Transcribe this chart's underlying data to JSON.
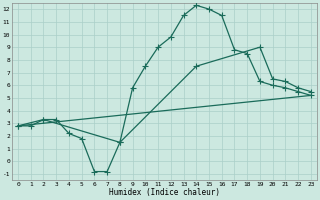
{
  "xlabel": "Humidex (Indice chaleur)",
  "bg_color": "#cce8e0",
  "grid_color": "#aacfc8",
  "line_color": "#1a6b5a",
  "xlim": [
    -0.5,
    23.5
  ],
  "ylim": [
    -1.5,
    12.5
  ],
  "xticks": [
    0,
    1,
    2,
    3,
    4,
    5,
    6,
    7,
    8,
    9,
    10,
    11,
    12,
    13,
    14,
    15,
    16,
    17,
    18,
    19,
    20,
    21,
    22,
    23
  ],
  "yticks": [
    -1,
    0,
    1,
    2,
    3,
    4,
    5,
    6,
    7,
    8,
    9,
    10,
    11,
    12
  ],
  "line1_x": [
    0,
    1,
    2,
    3,
    4,
    5,
    6,
    7,
    8,
    9,
    10,
    11,
    12,
    13,
    14,
    15,
    16,
    17,
    18,
    19,
    20,
    21,
    22,
    23
  ],
  "line1_y": [
    2.8,
    2.8,
    3.3,
    3.3,
    2.2,
    1.8,
    -0.8,
    -0.8,
    1.5,
    5.8,
    7.5,
    9.0,
    9.8,
    11.5,
    12.3,
    12.0,
    11.5,
    8.8,
    8.5,
    6.3,
    6.0,
    5.8,
    5.5,
    5.2
  ],
  "line2_x": [
    0,
    2,
    8,
    14,
    19,
    20,
    21,
    22,
    23
  ],
  "line2_y": [
    2.8,
    3.3,
    1.5,
    7.5,
    9.0,
    6.5,
    6.3,
    5.8,
    5.5
  ],
  "line3_x": [
    0,
    23
  ],
  "line3_y": [
    2.8,
    5.2
  ],
  "marker": "+",
  "marker_size": 4,
  "line_width": 0.9
}
